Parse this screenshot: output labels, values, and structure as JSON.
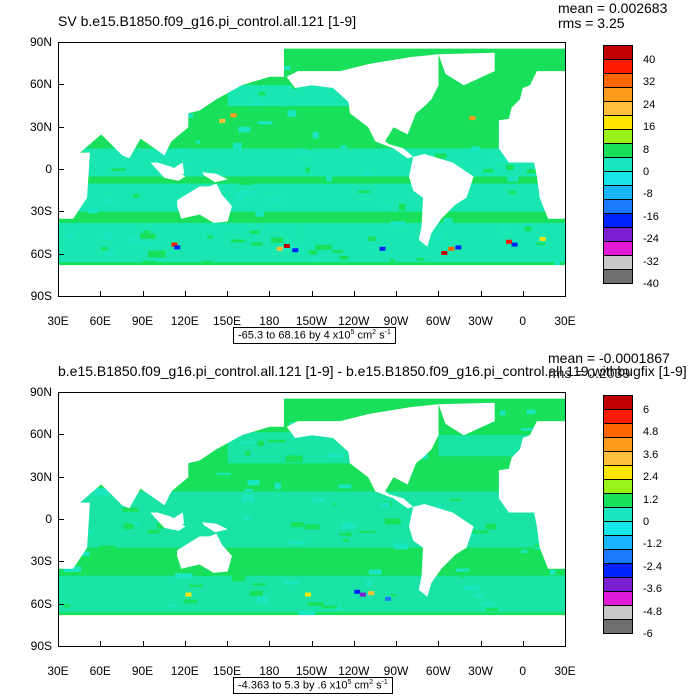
{
  "chart_data": [
    {
      "type": "heatmap",
      "title": "SV b.e15.B1850.f09_g16.pi_control.all.121 [1-9]",
      "mean_label": "mean = 0.002683",
      "rms_label": "rms = 3.25",
      "yticks": [
        "90N",
        "60N",
        "30N",
        "0",
        "30S",
        "60S",
        "90S"
      ],
      "xticks": [
        "30E",
        "60E",
        "90E",
        "120E",
        "150E",
        "180",
        "150W",
        "120W",
        "90W",
        "60W",
        "30W",
        "0",
        "30E"
      ],
      "range_prefix": "-65.3 to 68.16 by 4 x10",
      "range_exp": "5",
      "range_unit": " cm",
      "range_unit_exp": "2",
      "range_suffix": " s",
      "range_suffix_exp": "-1",
      "colorbar_levels": [
        "40",
        "32",
        "24",
        "16",
        "8",
        "0",
        "-8",
        "-16",
        "-24",
        "-32",
        "-40"
      ],
      "colorbar_colors": [
        "#c00000",
        "#ff1a00",
        "#ff6600",
        "#ff9a1a",
        "#ffbf3a",
        "#ffe600",
        "#9af21a",
        "#19e05a",
        "#1ae6c0",
        "#17e6e6",
        "#18b6ff",
        "#1a7aff",
        "#0022ff",
        "#7a1fd1",
        "#e01ad6",
        "#c8c8c8",
        "#6e6e6e"
      ],
      "land_fraction_note": ""
    },
    {
      "type": "heatmap",
      "title": "b.e15.B1850.f09_g16.pi_control.all.121 [1-9] - b.e15.B1850.f09_g16.pi_control.all.119.withbugfix [1-9]",
      "mean_label": "mean = -0.0001867",
      "rms_label": "rms = 0.2039",
      "yticks": [
        "90N",
        "60N",
        "30N",
        "0",
        "30S",
        "60S",
        "90S"
      ],
      "xticks": [
        "30E",
        "60E",
        "90E",
        "120E",
        "150E",
        "180",
        "150W",
        "120W",
        "90W",
        "60W",
        "30W",
        "0",
        "30E"
      ],
      "range_prefix": "-4.363 to 5.3 by .6 x10",
      "range_exp": "5",
      "range_unit": " cm",
      "range_unit_exp": "2",
      "range_suffix": " s",
      "range_suffix_exp": "-1",
      "colorbar_levels": [
        "6",
        "4.8",
        "3.6",
        "2.4",
        "1.2",
        "0",
        "-1.2",
        "-2.4",
        "-3.6",
        "-4.8",
        "-6"
      ],
      "colorbar_colors": [
        "#c00000",
        "#ff1a00",
        "#ff6600",
        "#ff9a1a",
        "#ffbf3a",
        "#ffe600",
        "#9af21a",
        "#19e05a",
        "#1ae6c0",
        "#17e6e6",
        "#18b6ff",
        "#1a7aff",
        "#0022ff",
        "#7a1fd1",
        "#e01ad6",
        "#c8c8c8",
        "#6e6e6e"
      ],
      "land_fraction_note": ""
    }
  ],
  "colors": {
    "ocean_main": "#19e05a",
    "ocean_cyan": "#1ae6c0",
    "land": "#ffffff"
  }
}
